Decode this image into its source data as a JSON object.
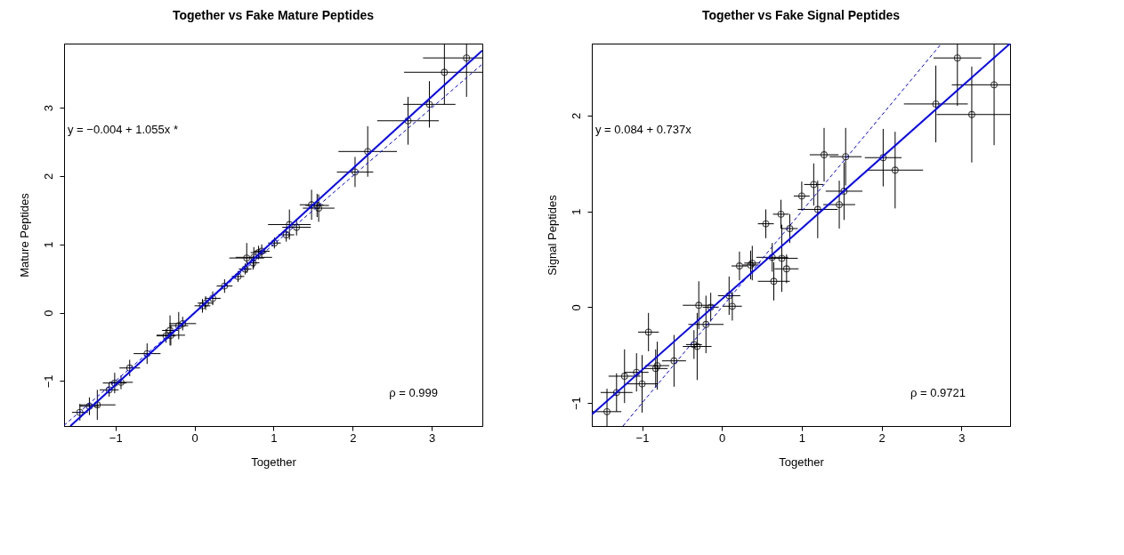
{
  "chart_data": [
    {
      "type": "scatter",
      "title": "Together vs Fake Mature Peptides",
      "xlabel": "Together",
      "ylabel": "Mature Peptides",
      "xlim": [
        -1.65,
        3.64
      ],
      "ylim": [
        -1.66,
        3.94
      ],
      "xticks": [
        {
          "value": -1,
          "label": "−1"
        },
        0,
        1,
        2,
        3
      ],
      "yticks": [
        {
          "value": -1,
          "label": "−1"
        },
        0,
        1,
        2,
        3
      ],
      "grid": false,
      "legend": false,
      "annotations": [
        "y = −0.004 + 1.055x *",
        "ρ = 0.999"
      ],
      "series": [
        {
          "type": "scatter",
          "color": "#000000",
          "marker": "circle",
          "x": [
            -1.45,
            -1.33,
            -1.23,
            -1.08,
            -1.01,
            -0.93,
            -0.82,
            -0.6,
            -0.36,
            -0.31,
            -0.3,
            -0.2,
            -0.15,
            0.1,
            0.14,
            0.23,
            0.38,
            0.55,
            0.64,
            0.66,
            0.74,
            0.75,
            0.81,
            0.85,
            1.01,
            1.16,
            1.2,
            1.29,
            1.48,
            1.55,
            1.57,
            2.03,
            2.19,
            2.7,
            2.97,
            3.16,
            3.44
          ],
          "values": [
            -1.46,
            -1.37,
            -1.35,
            -1.13,
            -1.03,
            -1.02,
            -0.81,
            -0.6,
            -0.34,
            -0.26,
            -0.33,
            -0.19,
            -0.16,
            0.1,
            0.14,
            0.21,
            0.39,
            0.53,
            0.64,
            0.8,
            0.73,
            0.81,
            0.88,
            0.9,
            1.02,
            1.14,
            1.29,
            1.25,
            1.58,
            1.57,
            1.53,
            2.06,
            2.36,
            2.81,
            3.05,
            3.52,
            3.73
          ],
          "errors": [
            0.12,
            0.13,
            0.22,
            0.1,
            0.15,
            0.1,
            0.12,
            0.15,
            0.1,
            0.22,
            0.15,
            0.2,
            0.1,
            0.1,
            0.1,
            0.1,
            0.1,
            0.08,
            0.08,
            0.22,
            0.1,
            0.15,
            0.1,
            0.1,
            0.08,
            0.1,
            0.22,
            0.12,
            0.22,
            0.17,
            0.2,
            0.22,
            0.37,
            0.35,
            0.34,
            [
              3.05,
              3.94
            ],
            [
              3.16,
              3.94
            ]
          ],
          "xerrors": [
            0.1,
            0.12,
            0.23,
            0.12,
            0.15,
            0.15,
            0.13,
            0.17,
            0.12,
            0.1,
            0.18,
            0.12,
            0.17,
            0.1,
            0.1,
            0.1,
            0.1,
            0.08,
            0.08,
            0.22,
            0.08,
            0.23,
            0.1,
            0.1,
            0.08,
            0.1,
            0.27,
            0.18,
            0.15,
            0.15,
            0.2,
            0.23,
            0.37,
            0.39,
            0.33,
            [
              2.65,
              3.64
            ],
            [
              2.89,
              3.64
            ]
          ]
        },
        {
          "type": "line",
          "color": "#0000ff",
          "line_style": "solid",
          "x": [
            -1.57,
            3.64
          ],
          "values": [
            -1.66,
            3.84
          ]
        },
        {
          "type": "line",
          "color": "#0000ff",
          "line_style": "dashed",
          "x": [
            -1.65,
            3.64
          ],
          "values": [
            -1.65,
            3.64
          ]
        }
      ]
    },
    {
      "type": "scatter",
      "title": "Together vs Fake Signal Peptides",
      "xlabel": "Together",
      "ylabel": "Signal Peptides",
      "xlim": [
        -1.63,
        3.61
      ],
      "ylim": [
        -1.24,
        2.75
      ],
      "xticks": [
        {
          "value": -1,
          "label": "−1"
        },
        0,
        1,
        2,
        3
      ],
      "yticks": [
        {
          "value": -1,
          "label": "−1"
        },
        0,
        1,
        2
      ],
      "grid": false,
      "legend": false,
      "annotations": [
        "y = 0.084 + 0.737x",
        "ρ = 0.9721"
      ],
      "series": [
        {
          "type": "scatter",
          "color": "#000000",
          "marker": "circle",
          "x": [
            -1.44,
            -1.32,
            -1.22,
            -1.07,
            -1.0,
            -0.92,
            -0.83,
            -0.81,
            -0.6,
            -0.35,
            -0.31,
            -0.29,
            -0.2,
            -0.14,
            0.09,
            0.13,
            0.22,
            0.36,
            0.38,
            0.63,
            0.75,
            0.81,
            0.65,
            0.55,
            0.74,
            0.85,
            1.0,
            1.15,
            1.2,
            1.28,
            1.47,
            1.53,
            1.55,
            2.02,
            2.17,
            2.68,
            2.95,
            3.13,
            3.41
          ],
          "values": [
            -1.09,
            -0.89,
            -0.72,
            -0.68,
            -0.8,
            -0.26,
            -0.64,
            -0.61,
            -0.56,
            -0.39,
            -0.41,
            0.02,
            -0.18,
            0.0,
            0.12,
            0.01,
            0.43,
            0.44,
            0.46,
            0.52,
            0.51,
            0.4,
            0.27,
            0.87,
            0.97,
            0.82,
            1.16,
            1.28,
            1.02,
            1.59,
            1.07,
            1.21,
            1.57,
            1.56,
            1.43,
            2.12,
            2.6,
            2.01,
            2.32
          ],
          "errors": [
            [
              -1.24,
              -0.85
            ],
            0.2,
            0.28,
            0.2,
            0.3,
            0.2,
            0.2,
            0.25,
            0.27,
            0.15,
            0.35,
            0.25,
            0.3,
            0.15,
            0.2,
            0.15,
            0.15,
            0.15,
            0.18,
            0.15,
            0.35,
            0.15,
            0.2,
            0.15,
            0.15,
            0.15,
            0.15,
            0.22,
            0.3,
            0.28,
            0.25,
            0.3,
            0.3,
            0.3,
            0.4,
            0.4,
            [
              2.1,
              2.75
            ],
            0.5,
            [
              1.69,
              2.75
            ]
          ],
          "xerrors": [
            0.18,
            0.2,
            0.2,
            0.15,
            0.2,
            0.13,
            0.15,
            0.15,
            0.15,
            0.1,
            0.18,
            0.2,
            0.22,
            0.1,
            0.14,
            0.12,
            0.1,
            0.1,
            0.1,
            0.2,
            0.2,
            0.15,
            0.2,
            0.1,
            0.1,
            0.1,
            0.1,
            0.12,
            0.25,
            0.18,
            0.2,
            0.23,
            0.2,
            0.23,
            0.35,
            0.4,
            0.3,
            [
              2.69,
              3.61
            ],
            [
              2.88,
              3.61
            ]
          ]
        },
        {
          "type": "line",
          "color": "#0000ff",
          "line_style": "solid",
          "x": [
            -1.63,
            3.61
          ],
          "values": [
            -1.12,
            2.75
          ]
        },
        {
          "type": "line",
          "color": "#0000ff",
          "line_style": "dashed",
          "x": [
            -1.24,
            2.75
          ],
          "values": [
            -1.24,
            2.75
          ]
        }
      ]
    }
  ]
}
